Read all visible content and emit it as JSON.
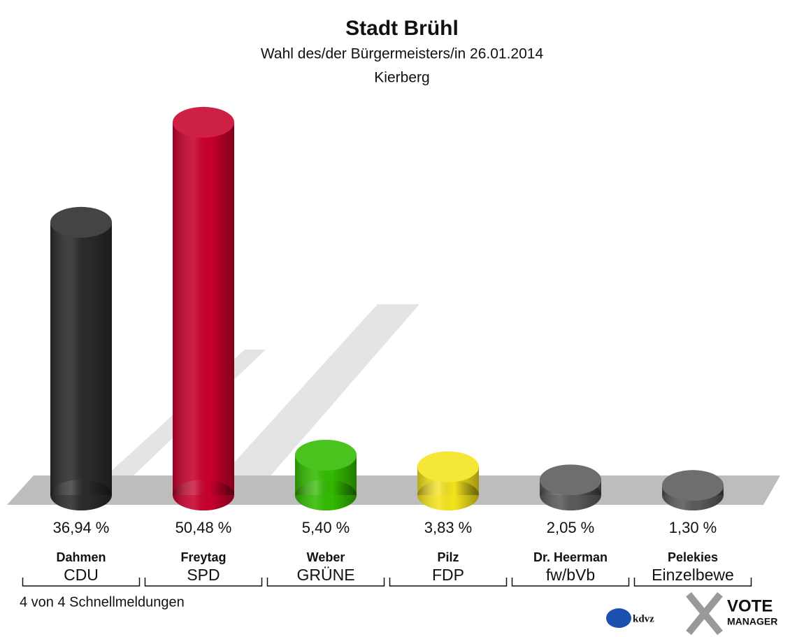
{
  "chart_data": {
    "type": "bar",
    "title": "Stadt Brühl",
    "subtitle": "Wahl des/der Bürgermeisters/in 26.01.2014",
    "location": "Kierberg",
    "categories": [
      "Dahmen",
      "Freytag",
      "Weber",
      "Pilz",
      "Dr. Heerman",
      "Pelekies"
    ],
    "parties": [
      "CDU",
      "SPD",
      "GRÜNE",
      "FDP",
      "fw/bVb",
      "Einzelbewe"
    ],
    "values": [
      36.94,
      50.48,
      5.4,
      3.83,
      2.05,
      1.3
    ],
    "value_labels": [
      "36,94 %",
      "50,48 %",
      "5,40 %",
      "3,83 %",
      "2,05 %",
      "1,30 %"
    ],
    "colors": [
      "#2b2b2b",
      "#c8002c",
      "#33bb00",
      "#f4e41c",
      "#5a5a5a",
      "#5a5a5a"
    ],
    "footer": "4 von 4 Schnellmeldungen",
    "logo": {
      "kdvz": "kdvz",
      "vote": "VOTE",
      "manager": "MANAGER"
    }
  }
}
